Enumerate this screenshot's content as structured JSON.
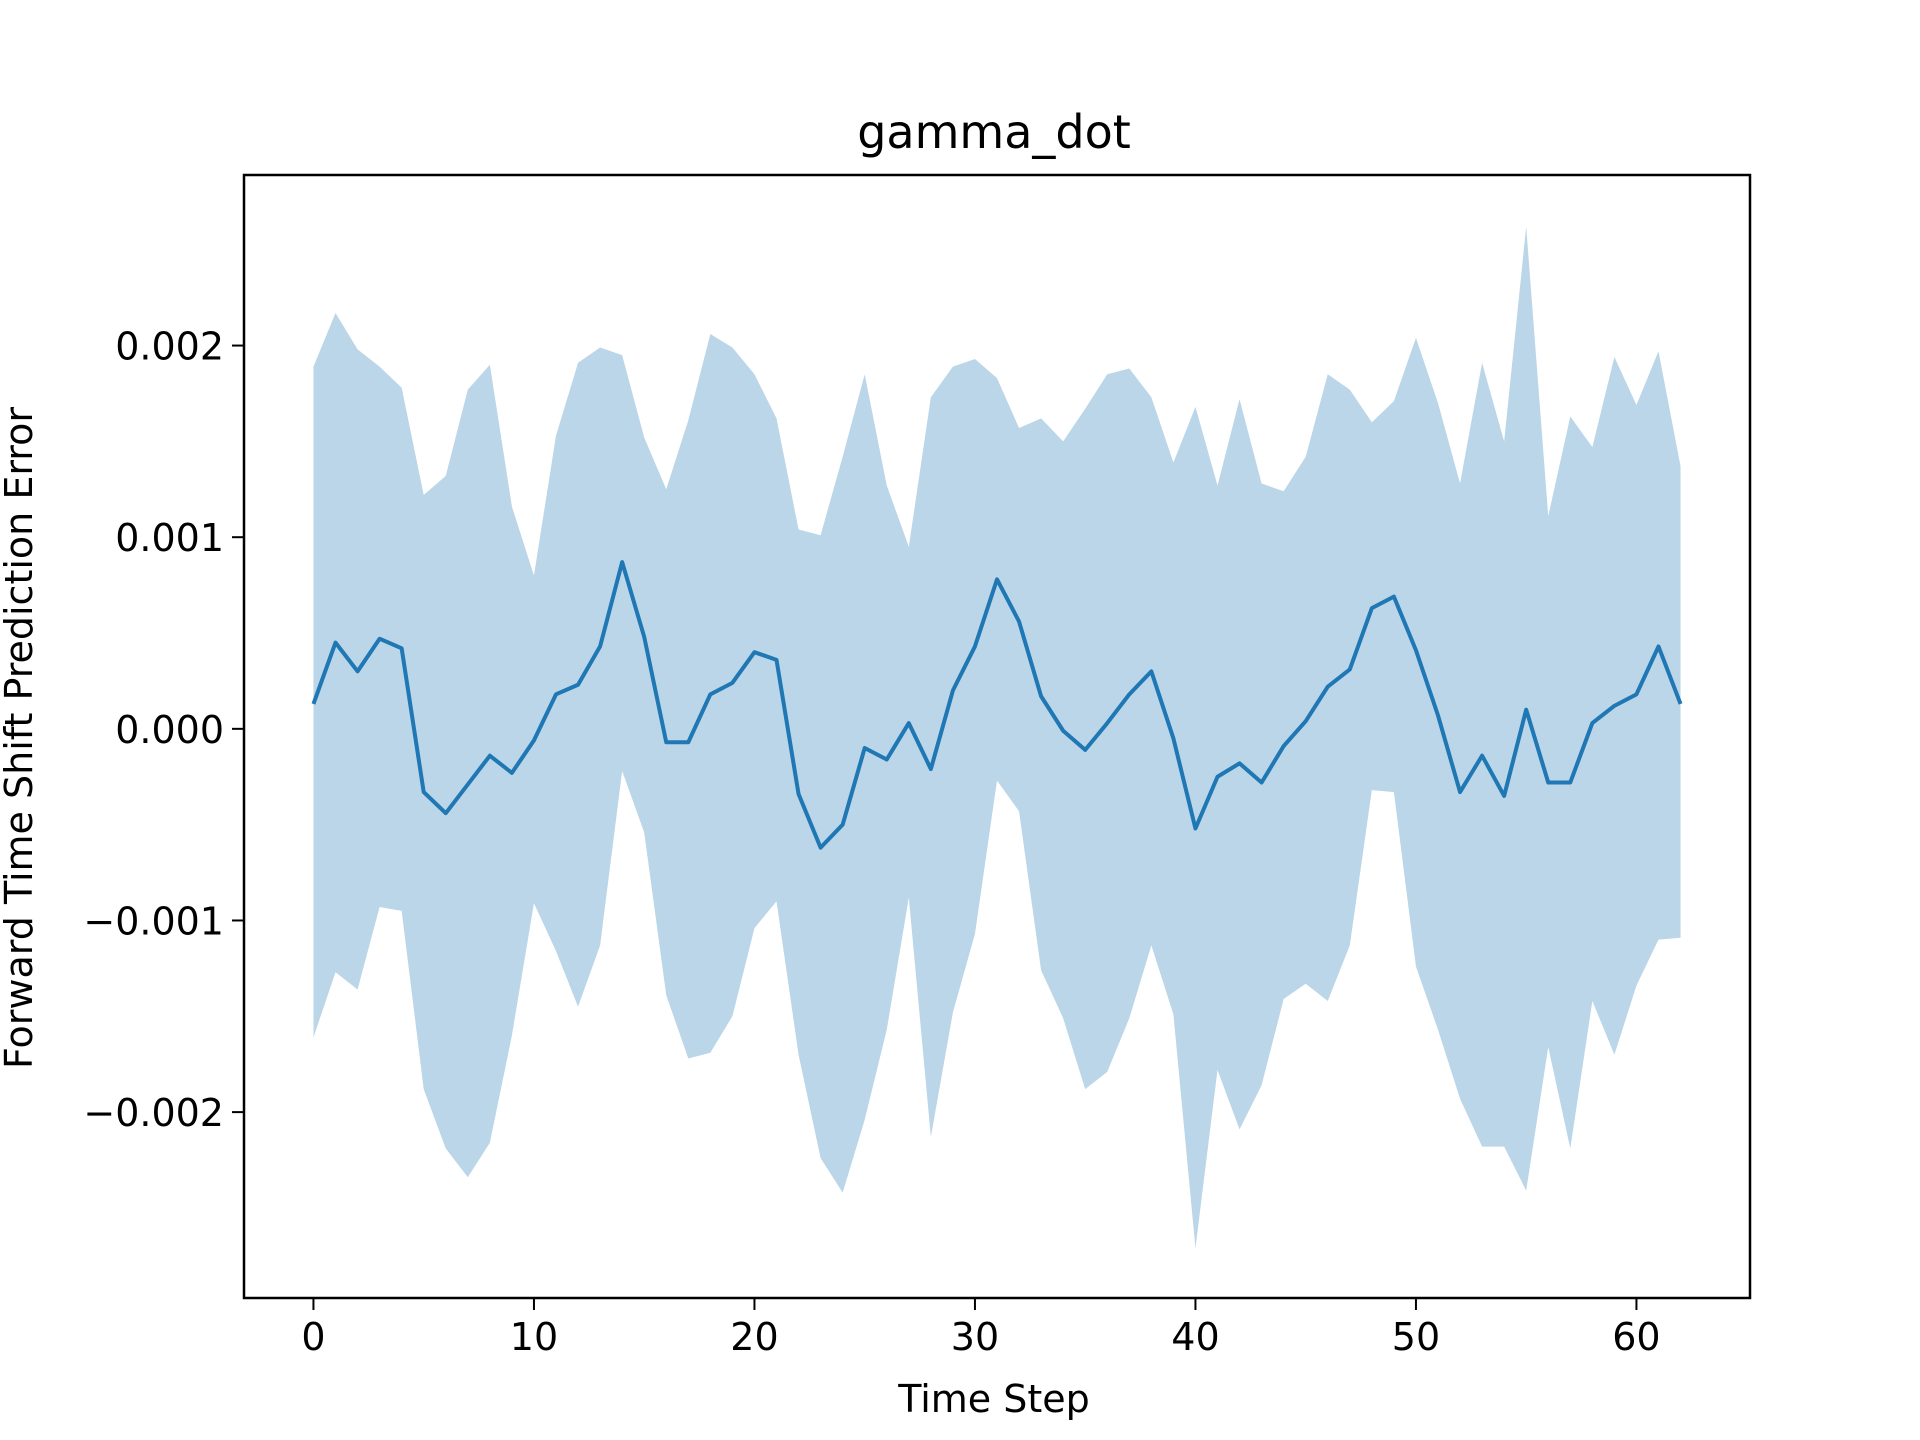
{
  "chart_data": {
    "type": "line",
    "title": "gamma_dot",
    "xlabel": "Time Step",
    "ylabel": "Forward Time Shift Prediction Error",
    "xlim": [
      -3.15,
      65.15
    ],
    "ylim": [
      -0.00297,
      0.00289
    ],
    "x_ticks": [
      0,
      10,
      20,
      30,
      40,
      50,
      60
    ],
    "x_tick_labels": [
      "0",
      "10",
      "20",
      "30",
      "40",
      "50",
      "60"
    ],
    "y_ticks": [
      0.002,
      0.001,
      0.0,
      -0.001,
      -0.002
    ],
    "y_tick_labels": [
      "0.002",
      "0.001",
      "0.000",
      "−0.001",
      "−0.002"
    ],
    "grid": false,
    "legend": "none",
    "colors": {
      "line": "#1f77b4",
      "band": "#1f77b4",
      "band_opacity": 0.3
    },
    "x": [
      0,
      1,
      2,
      3,
      4,
      5,
      6,
      7,
      8,
      9,
      10,
      11,
      12,
      13,
      14,
      15,
      16,
      17,
      18,
      19,
      20,
      21,
      22,
      23,
      24,
      25,
      26,
      27,
      28,
      29,
      30,
      31,
      32,
      33,
      34,
      35,
      36,
      37,
      38,
      39,
      40,
      41,
      42,
      43,
      44,
      45,
      46,
      47,
      48,
      49,
      50,
      51,
      52,
      53,
      54,
      55,
      56,
      57,
      58,
      59,
      60,
      61,
      62
    ],
    "series": [
      {
        "values": [
          0.00013,
          0.00045,
          0.0003,
          0.00047,
          0.00042,
          -0.00033,
          -0.00044,
          -0.00029,
          -0.00014,
          -0.00023,
          -6e-05,
          0.00018,
          0.00023,
          0.00043,
          0.00087,
          0.00048,
          -7e-05,
          -7e-05,
          0.00018,
          0.00024,
          0.0004,
          0.00036,
          -0.00034,
          -0.00062,
          -0.0005,
          -0.0001,
          -0.00016,
          3e-05,
          -0.00021,
          0.0002,
          0.00043,
          0.00078,
          0.00056,
          0.00017,
          -1e-05,
          -0.00011,
          3e-05,
          0.00018,
          0.0003,
          -5e-05,
          -0.00052,
          -0.00025,
          -0.00018,
          -0.00028,
          -9e-05,
          4e-05,
          0.00022,
          0.00031,
          0.00063,
          0.00069,
          0.00041,
          7e-05,
          -0.00033,
          -0.00014,
          -0.00035,
          0.0001,
          -0.00028,
          -0.00028,
          3e-05,
          0.00012,
          0.00018,
          0.00043,
          0.00013
        ],
        "upper": [
          0.00189,
          0.00217,
          0.00198,
          0.00189,
          0.00178,
          0.00122,
          0.00132,
          0.00177,
          0.0019,
          0.00116,
          0.0008,
          0.00153,
          0.00191,
          0.00199,
          0.00195,
          0.00152,
          0.00125,
          0.00161,
          0.00206,
          0.00199,
          0.00185,
          0.00162,
          0.00104,
          0.00101,
          0.00142,
          0.00185,
          0.00127,
          0.00095,
          0.00173,
          0.00189,
          0.00193,
          0.00183,
          0.00157,
          0.00162,
          0.0015,
          0.00167,
          0.00185,
          0.00188,
          0.00173,
          0.00139,
          0.00168,
          0.00127,
          0.00172,
          0.00128,
          0.00124,
          0.00142,
          0.00185,
          0.00177,
          0.0016,
          0.00171,
          0.00204,
          0.0017,
          0.00128,
          0.00191,
          0.0015,
          0.00262,
          0.00111,
          0.00163,
          0.00147,
          0.00194,
          0.00169,
          0.00197,
          0.00137
        ],
        "lower": [
          -0.00161,
          -0.00127,
          -0.00136,
          -0.00093,
          -0.00095,
          -0.00188,
          -0.00219,
          -0.00234,
          -0.00216,
          -0.0016,
          -0.00091,
          -0.00116,
          -0.00145,
          -0.00113,
          -0.00022,
          -0.00054,
          -0.00139,
          -0.00172,
          -0.00169,
          -0.0015,
          -0.00104,
          -0.0009,
          -0.0017,
          -0.00224,
          -0.00242,
          -0.00204,
          -0.00157,
          -0.00088,
          -0.00213,
          -0.00148,
          -0.00107,
          -0.00027,
          -0.00043,
          -0.00126,
          -0.00151,
          -0.00188,
          -0.00179,
          -0.00151,
          -0.00113,
          -0.00149,
          -0.00271,
          -0.00178,
          -0.00209,
          -0.00186,
          -0.00141,
          -0.00133,
          -0.00142,
          -0.00113,
          -0.00032,
          -0.00033,
          -0.00124,
          -0.00157,
          -0.00193,
          -0.00218,
          -0.00218,
          -0.00241,
          -0.00166,
          -0.00219,
          -0.00142,
          -0.0017,
          -0.00134,
          -0.0011,
          -0.00109
        ]
      }
    ]
  }
}
